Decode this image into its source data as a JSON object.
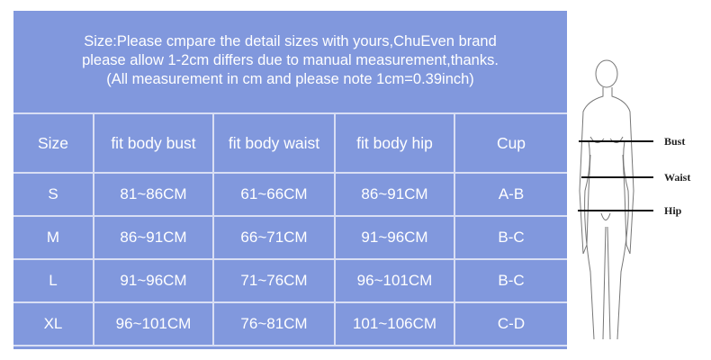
{
  "intro": {
    "line1": "Size:Please cmpare the detail sizes with yours,ChuEven brand",
    "line2": "please allow 1-2cm differs due to manual measurement,thanks.",
    "line3": "(All measurement in cm and please note 1cm=0.39inch)"
  },
  "table": {
    "headers": [
      "Size",
      "fit body bust",
      "fit body waist",
      "fit body hip",
      "Cup"
    ],
    "rows": [
      [
        "S",
        "81~86CM",
        "61~66CM",
        "86~91CM",
        "A-B"
      ],
      [
        "M",
        "86~91CM",
        "66~71CM",
        "91~96CM",
        "B-C"
      ],
      [
        "L",
        "91~96CM",
        "71~76CM",
        "96~101CM",
        "B-C"
      ],
      [
        "XL",
        "96~101CM",
        "76~81CM",
        "101~106CM",
        "C-D"
      ]
    ]
  },
  "figure": {
    "labels": {
      "bust": "Bust",
      "waist": "Waist",
      "hip": "Hip"
    }
  },
  "colors": {
    "panel": "#8198dd",
    "text": "#ffffff"
  }
}
